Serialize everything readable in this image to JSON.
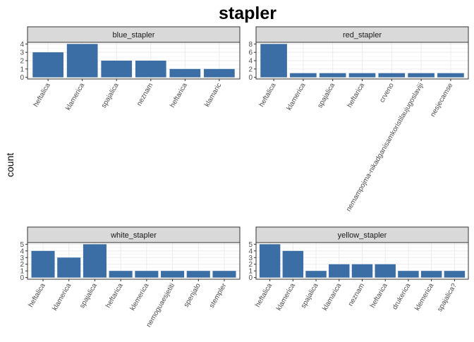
{
  "figure": {
    "title": "stapler",
    "ylabel": "count",
    "bar_color": "#3a6ea5"
  },
  "chart_data": [
    {
      "type": "bar",
      "title": "blue_stapler",
      "categories": [
        "heftalica",
        "klamerica",
        "spajalica",
        "neznam",
        "heftarica",
        "klamaric"
      ],
      "values": [
        3,
        4,
        2,
        2,
        1,
        1
      ],
      "ylim": [
        0,
        4
      ],
      "yticks": [
        0,
        1,
        2,
        3,
        4
      ]
    },
    {
      "type": "bar",
      "title": "red_stapler",
      "categories": [
        "heftalica",
        "klamerica",
        "spajalica",
        "heftarica",
        "crveno",
        "nemampojma-nikadganisamkoristilaujugoslaviji",
        "nesjecamse"
      ],
      "values": [
        8,
        1,
        1,
        1,
        1,
        1,
        1
      ],
      "ylim": [
        0,
        8
      ],
      "yticks": [
        0,
        2,
        4,
        6,
        8
      ]
    },
    {
      "type": "bar",
      "title": "white_stapler",
      "categories": [
        "heftalica",
        "klamerica",
        "spajalica",
        "heftarica",
        "klemerica",
        "nemoguaesjetiti",
        "spenjalo",
        "stempler"
      ],
      "values": [
        4,
        3,
        5,
        1,
        1,
        1,
        1,
        1
      ],
      "ylim": [
        0,
        5
      ],
      "yticks": [
        0,
        1,
        2,
        3,
        4,
        5
      ]
    },
    {
      "type": "bar",
      "title": "yellow_stapler",
      "categories": [
        "heftalica",
        "klamerica",
        "spajalica",
        "klamarica",
        "neznam",
        "heftarica",
        "drukerica",
        "klemerica",
        "spajalica?"
      ],
      "values": [
        5,
        4,
        1,
        2,
        2,
        2,
        1,
        1,
        1
      ],
      "ylim": [
        0,
        5
      ],
      "yticks": [
        0,
        1,
        2,
        3,
        4,
        5
      ]
    }
  ]
}
